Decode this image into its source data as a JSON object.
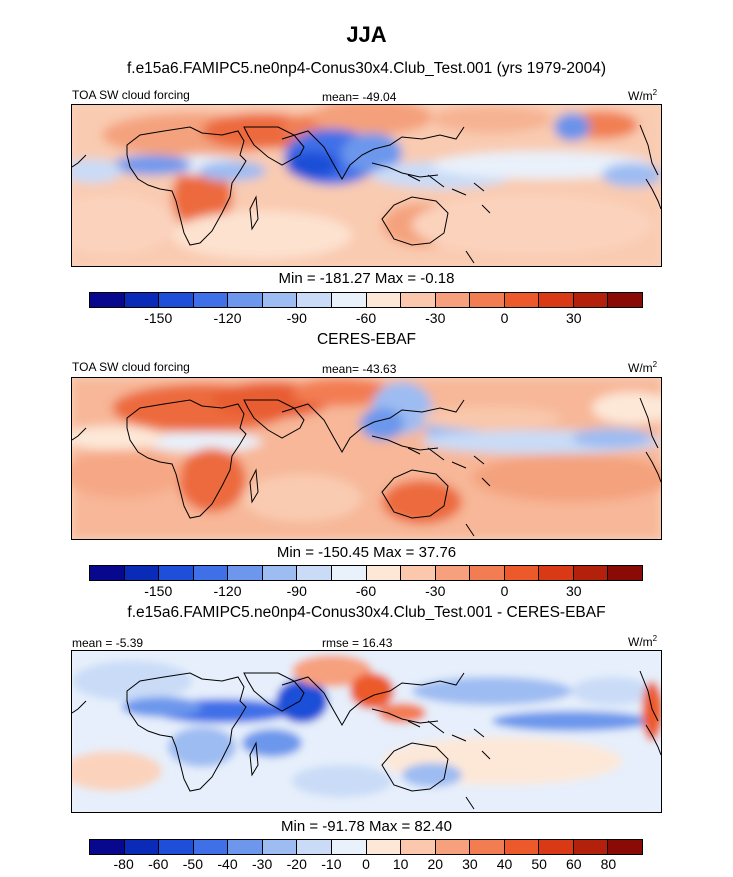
{
  "title": "JJA",
  "panels": [
    {
      "heading": "f.e15a6.FAMIPC5.ne0np4-Conus30x4.Club_Test.001 (yrs 1979-2004)",
      "left_label": "TOA SW cloud forcing",
      "center_label": "mean= -49.04",
      "unit_base": "W/m",
      "unit_exp": "2",
      "minmax": "Min = -181.27 Max =  -0.18",
      "colorbar": {
        "colors": [
          "#08088f",
          "#0a2bb8",
          "#1f4fd8",
          "#3f70e8",
          "#6c97ec",
          "#9dbcf2",
          "#c9dbf7",
          "#e9f1fb",
          "#fde8d8",
          "#fbc8ad",
          "#f7a07e",
          "#f37d52",
          "#ec5a2c",
          "#d93915",
          "#b3200c",
          "#8a0a06"
        ],
        "tick_labels": [
          "-150",
          "-120",
          "-90",
          "-60",
          "-30",
          "0",
          "30"
        ]
      }
    },
    {
      "heading": "CERES-EBAF",
      "left_label": "TOA SW cloud forcing",
      "center_label": "mean= -43.63",
      "unit_base": "W/m",
      "unit_exp": "2",
      "minmax": "Min = -150.45 Max =  37.76",
      "colorbar": {
        "colors": [
          "#08088f",
          "#0a2bb8",
          "#1f4fd8",
          "#3f70e8",
          "#6c97ec",
          "#9dbcf2",
          "#c9dbf7",
          "#e9f1fb",
          "#fde8d8",
          "#fbc8ad",
          "#f7a07e",
          "#f37d52",
          "#ec5a2c",
          "#d93915",
          "#b3200c",
          "#8a0a06"
        ],
        "tick_labels": [
          "-150",
          "-120",
          "-90",
          "-60",
          "-30",
          "0",
          "30"
        ]
      }
    },
    {
      "heading": "f.e15a6.FAMIPC5.ne0np4-Conus30x4.Club_Test.001 - CERES-EBAF",
      "left_label": "mean =  -5.39",
      "center_label": "rmse =  16.43",
      "unit_base": "W/m",
      "unit_exp": "2",
      "minmax": "Min = -91.78 Max =  82.40",
      "colorbar": {
        "colors": [
          "#08088f",
          "#0a2bb8",
          "#1f4fd8",
          "#3f70e8",
          "#6c97ec",
          "#9dbcf2",
          "#c9dbf7",
          "#e9f1fb",
          "#fde8d8",
          "#fbc8ad",
          "#f7a07e",
          "#f37d52",
          "#ec5a2c",
          "#d93915",
          "#b3200c",
          "#8a0a06"
        ],
        "tick_labels": [
          "-80",
          "-60",
          "-50",
          "-40",
          "-30",
          "-20",
          "-10",
          "0",
          "10",
          "20",
          "30",
          "40",
          "50",
          "60",
          "80"
        ]
      }
    }
  ]
}
